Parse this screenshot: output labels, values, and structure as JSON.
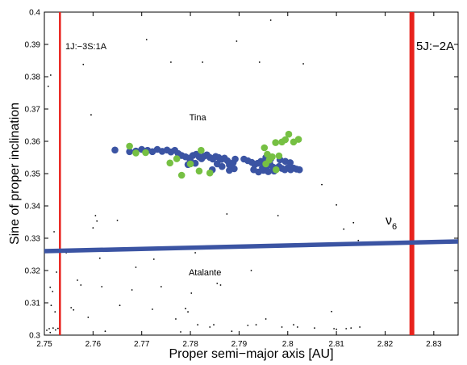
{
  "chart_data": {
    "type": "scatter",
    "xlabel": "Proper semi−major axis [AU]",
    "ylabel": "Sine of proper inclination",
    "xlim": [
      2.75,
      2.835
    ],
    "ylim": [
      0.3,
      0.4
    ],
    "x_ticks": [
      "2.75",
      "2.76",
      "2.77",
      "2.78",
      "2.79",
      "2.8",
      "2.81",
      "2.82",
      "2.83"
    ],
    "y_ticks": [
      "0.3",
      "0.31",
      "0.32",
      "0.33",
      "0.34",
      "0.35",
      "0.36",
      "0.37",
      "0.38",
      "0.39",
      "0.4"
    ],
    "grid": false,
    "colors": {
      "blue": "#3b54a3",
      "green": "#76c043",
      "red": "#e8231d",
      "background": "#000000"
    },
    "resonance_lines": [
      {
        "label": "1J:−3S:1A",
        "x": 2.7532
      },
      {
        "label": "5J:−2A",
        "x": 2.8255
      }
    ],
    "secular_resonance": {
      "label": "ν",
      "subscript": "6",
      "x": [
        2.75,
        2.835
      ],
      "y": [
        0.326,
        0.329
      ]
    },
    "annotations": [
      {
        "text": "Tina",
        "x": 2.7815,
        "y": 0.3665
      },
      {
        "text": "Atalante",
        "x": 2.783,
        "y": 0.3185
      }
    ],
    "series": [
      {
        "color": "blue",
        "points": [
          [
            2.7645,
            0.3573
          ],
          [
            2.7675,
            0.3568
          ],
          [
            2.7688,
            0.357
          ],
          [
            2.77,
            0.3575
          ],
          [
            2.7712,
            0.3572
          ],
          [
            2.7722,
            0.3568
          ],
          [
            2.7732,
            0.3575
          ],
          [
            2.7742,
            0.3569
          ],
          [
            2.7752,
            0.3573
          ],
          [
            2.776,
            0.3567
          ],
          [
            2.7768,
            0.3572
          ],
          [
            2.7775,
            0.3562
          ],
          [
            2.7782,
            0.3556
          ],
          [
            2.779,
            0.3552
          ],
          [
            2.7798,
            0.3548
          ],
          [
            2.7805,
            0.3556
          ],
          [
            2.7812,
            0.356
          ],
          [
            2.7818,
            0.3552
          ],
          [
            2.7823,
            0.3546
          ],
          [
            2.7828,
            0.3554
          ],
          [
            2.7834,
            0.3558
          ],
          [
            2.784,
            0.355
          ],
          [
            2.7846,
            0.3545
          ],
          [
            2.7852,
            0.3553
          ],
          [
            2.7858,
            0.355
          ],
          [
            2.7864,
            0.3544
          ],
          [
            2.787,
            0.3548
          ],
          [
            2.7876,
            0.354
          ],
          [
            2.788,
            0.3527
          ],
          [
            2.7885,
            0.352
          ],
          [
            2.789,
            0.3515
          ],
          [
            2.7888,
            0.3534
          ],
          [
            2.7892,
            0.3545
          ],
          [
            2.788,
            0.351
          ],
          [
            2.7865,
            0.3522
          ],
          [
            2.7855,
            0.353
          ],
          [
            2.7845,
            0.3512
          ],
          [
            2.781,
            0.3532
          ],
          [
            2.78,
            0.354
          ],
          [
            2.7795,
            0.3528
          ],
          [
            2.791,
            0.3545
          ],
          [
            2.7918,
            0.354
          ],
          [
            2.7926,
            0.3535
          ],
          [
            2.7932,
            0.3528
          ],
          [
            2.7938,
            0.3532
          ],
          [
            2.7945,
            0.3538
          ],
          [
            2.7952,
            0.353
          ],
          [
            2.7958,
            0.3524
          ],
          [
            2.7964,
            0.3528
          ],
          [
            2.797,
            0.352
          ],
          [
            2.7976,
            0.3515
          ],
          [
            2.7982,
            0.3522
          ],
          [
            2.7988,
            0.3516
          ],
          [
            2.7994,
            0.3512
          ],
          [
            2.8,
            0.3518
          ],
          [
            2.8006,
            0.3512
          ],
          [
            2.8012,
            0.3517
          ],
          [
            2.8018,
            0.3514
          ],
          [
            2.8024,
            0.3512
          ],
          [
            2.793,
            0.3512
          ],
          [
            2.794,
            0.3505
          ],
          [
            2.795,
            0.351
          ],
          [
            2.796,
            0.3506
          ],
          [
            2.7972,
            0.3508
          ],
          [
            2.7965,
            0.3545
          ],
          [
            2.7955,
            0.355
          ],
          [
            2.7984,
            0.3543
          ],
          [
            2.7995,
            0.3538
          ],
          [
            2.8005,
            0.3534
          ],
          [
            2.7948,
            0.3518
          ]
        ]
      },
      {
        "color": "green",
        "points": [
          [
            2.7675,
            0.3585
          ],
          [
            2.7688,
            0.3564
          ],
          [
            2.7708,
            0.3565
          ],
          [
            2.7758,
            0.3533
          ],
          [
            2.7772,
            0.3546
          ],
          [
            2.7782,
            0.3495
          ],
          [
            2.78,
            0.353
          ],
          [
            2.7818,
            0.3508
          ],
          [
            2.7822,
            0.3572
          ],
          [
            2.784,
            0.3502
          ],
          [
            2.7952,
            0.358
          ],
          [
            2.7958,
            0.356
          ],
          [
            2.7962,
            0.3542
          ],
          [
            2.7968,
            0.3552
          ],
          [
            2.7975,
            0.3596
          ],
          [
            2.7982,
            0.3555
          ],
          [
            2.7988,
            0.3598
          ],
          [
            2.7995,
            0.3605
          ],
          [
            2.8002,
            0.3622
          ],
          [
            2.8012,
            0.3598
          ],
          [
            2.8022,
            0.3606
          ],
          [
            2.7955,
            0.353
          ],
          [
            2.7976,
            0.3512
          ]
        ]
      },
      {
        "color": "background",
        "points": [
          [
            2.7505,
            0.3015
          ],
          [
            2.751,
            0.302
          ],
          [
            2.7512,
            0.3008
          ],
          [
            2.7518,
            0.3022
          ],
          [
            2.7523,
            0.3016
          ],
          [
            2.7528,
            0.3021
          ],
          [
            2.7512,
            0.3148
          ],
          [
            2.7514,
            0.3092
          ],
          [
            2.7517,
            0.3135
          ],
          [
            2.7522,
            0.3072
          ],
          [
            2.7525,
            0.3195
          ],
          [
            2.7508,
            0.377
          ],
          [
            2.7513,
            0.3805
          ],
          [
            2.752,
            0.332
          ],
          [
            2.7545,
            0.3255
          ],
          [
            2.7555,
            0.3085
          ],
          [
            2.756,
            0.3078
          ],
          [
            2.7568,
            0.317
          ],
          [
            2.7575,
            0.3155
          ],
          [
            2.758,
            0.3838
          ],
          [
            2.759,
            0.3055
          ],
          [
            2.7596,
            0.3682
          ],
          [
            2.76,
            0.3332
          ],
          [
            2.7605,
            0.337
          ],
          [
            2.7608,
            0.3353
          ],
          [
            2.7614,
            0.3238
          ],
          [
            2.7618,
            0.315
          ],
          [
            2.7625,
            0.3012
          ],
          [
            2.765,
            0.3355
          ],
          [
            2.7655,
            0.3092
          ],
          [
            2.768,
            0.314
          ],
          [
            2.7688,
            0.321
          ],
          [
            2.771,
            0.3915
          ],
          [
            2.7722,
            0.308
          ],
          [
            2.7725,
            0.3235
          ],
          [
            2.774,
            0.315
          ],
          [
            2.776,
            0.3845
          ],
          [
            2.777,
            0.305
          ],
          [
            2.778,
            0.301
          ],
          [
            2.779,
            0.3082
          ],
          [
            2.7795,
            0.3072
          ],
          [
            2.7802,
            0.313
          ],
          [
            2.781,
            0.3255
          ],
          [
            2.7815,
            0.3032
          ],
          [
            2.7825,
            0.3845
          ],
          [
            2.784,
            0.3025
          ],
          [
            2.7848,
            0.3032
          ],
          [
            2.7855,
            0.316
          ],
          [
            2.7862,
            0.3155
          ],
          [
            2.7875,
            0.3375
          ],
          [
            2.7885,
            0.3012
          ],
          [
            2.7895,
            0.391
          ],
          [
            2.7918,
            0.303
          ],
          [
            2.7925,
            0.32
          ],
          [
            2.7935,
            0.3032
          ],
          [
            2.7942,
            0.3845
          ],
          [
            2.7955,
            0.305
          ],
          [
            2.7965,
            0.3975
          ],
          [
            2.798,
            0.337
          ],
          [
            2.7988,
            0.3025
          ],
          [
            2.8012,
            0.3032
          ],
          [
            2.802,
            0.3025
          ],
          [
            2.8032,
            0.384
          ],
          [
            2.8055,
            0.3022
          ],
          [
            2.807,
            0.3466
          ],
          [
            2.809,
            0.3073
          ],
          [
            2.8095,
            0.302
          ],
          [
            2.81,
            0.3018
          ],
          [
            2.812,
            0.302
          ],
          [
            2.813,
            0.3022
          ],
          [
            2.8135,
            0.3348
          ],
          [
            2.8145,
            0.3293
          ],
          [
            2.8148,
            0.3025
          ],
          [
            2.81,
            0.3403
          ],
          [
            2.8115,
            0.3328
          ]
        ]
      }
    ]
  }
}
